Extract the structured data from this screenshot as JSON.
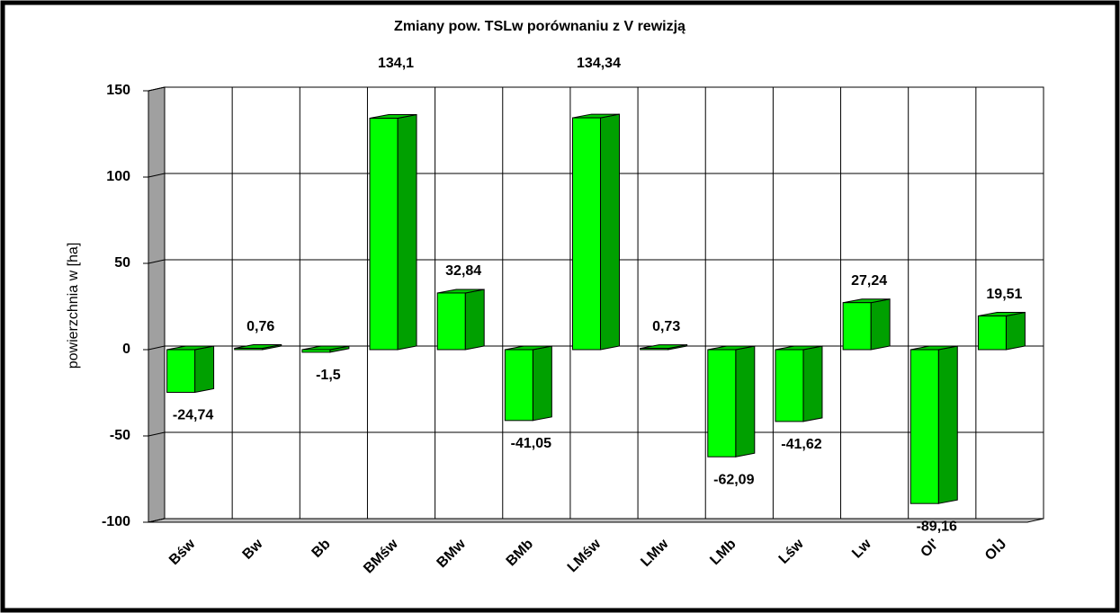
{
  "chart_data": {
    "type": "bar3d",
    "title": "Zmiany pow. TSLw porównaniu z V rewizją",
    "y_label": "powierzchnia w [ha]",
    "categories": [
      "Bśw",
      "Bw",
      "Bb",
      "BMśw",
      "BMw",
      "BMb",
      "LMśw",
      "LMw",
      "LMb",
      "Lśw",
      "Lw",
      "Ol'",
      "OlJ"
    ],
    "values": [
      -24.74,
      0.76,
      -1.5,
      134.1,
      32.84,
      -41.05,
      134.34,
      0.73,
      -62.09,
      -41.62,
      27.24,
      -89.16,
      19.51
    ],
    "value_labels": [
      "-24,74",
      "0,76",
      "-1,5",
      "134,1",
      "32,84",
      "-41,05",
      "134,34",
      "0,73",
      "-62,09",
      "-41,62",
      "27,24",
      "-89,16",
      "19,51"
    ],
    "color": "#00ff00",
    "ylim": [
      -100,
      150
    ],
    "yticks": [
      -100,
      -50,
      0,
      50,
      100,
      150
    ],
    "grid": true
  }
}
